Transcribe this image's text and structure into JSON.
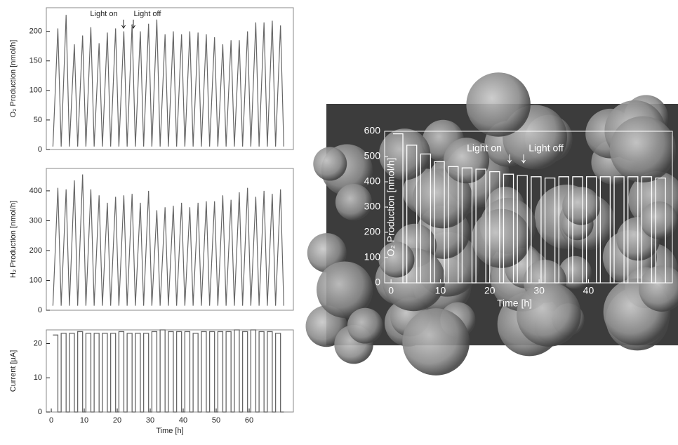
{
  "chart_data": [
    {
      "type": "line",
      "step": false,
      "color": "#666666",
      "axis_color": "#222222",
      "ylabel": "O₂ Production [nmol/h]",
      "annotations": [
        "Light on",
        "Light off"
      ],
      "xlim": [
        -1.5,
        73.4
      ],
      "ylim": [
        0,
        240
      ],
      "yticks": [
        0,
        50,
        100,
        150,
        200
      ],
      "x": [
        0.5,
        2,
        3,
        4.5,
        5.5,
        7,
        8,
        9.5,
        10.5,
        12,
        13,
        14.5,
        15.5,
        17,
        18,
        19.5,
        20.5,
        22,
        23,
        24.5,
        25.5,
        27,
        28,
        29.5,
        30.5,
        32,
        33,
        34.5,
        35.5,
        37,
        38,
        39.5,
        40.5,
        42,
        43,
        44.5,
        45.5,
        47,
        48,
        49.5,
        50.5,
        52,
        53,
        54.5,
        55.5,
        57,
        58,
        59.5,
        60.5,
        62,
        63,
        64.5,
        65.5,
        67,
        68,
        69.5,
        70.5
      ],
      "values": [
        5,
        205,
        5,
        228,
        5,
        178,
        5,
        193,
        5,
        207,
        5,
        180,
        5,
        198,
        5,
        205,
        5,
        200,
        5,
        212,
        5,
        200,
        5,
        213,
        5,
        220,
        5,
        195,
        5,
        200,
        5,
        195,
        5,
        200,
        5,
        198,
        5,
        195,
        5,
        190,
        5,
        178,
        5,
        185,
        5,
        185,
        5,
        200,
        5,
        215,
        5,
        215,
        5,
        218,
        5,
        210,
        5
      ]
    },
    {
      "type": "line",
      "step": false,
      "color": "#666666",
      "axis_color": "#222222",
      "ylabel": "H₂ Production [nmol/h]",
      "xlim": [
        -1.5,
        73.4
      ],
      "ylim": [
        0,
        475
      ],
      "yticks": [
        0,
        100,
        200,
        300,
        400
      ],
      "x": [
        0.5,
        2,
        3,
        4.5,
        5.5,
        7,
        8,
        9.5,
        10.5,
        12,
        13,
        14.5,
        15.5,
        17,
        18,
        19.5,
        20.5,
        22,
        23,
        24.5,
        25.5,
        27,
        28,
        29.5,
        30.5,
        32,
        33,
        34.5,
        35.5,
        37,
        38,
        39.5,
        40.5,
        42,
        43,
        44.5,
        45.5,
        47,
        48,
        49.5,
        50.5,
        52,
        53,
        54.5,
        55.5,
        57,
        58,
        59.5,
        60.5,
        62,
        63,
        64.5,
        65.5,
        67,
        68,
        69.5,
        70.5
      ],
      "values": [
        15,
        410,
        15,
        405,
        15,
        435,
        15,
        455,
        15,
        405,
        15,
        385,
        15,
        360,
        15,
        380,
        15,
        385,
        15,
        390,
        15,
        360,
        15,
        400,
        15,
        335,
        15,
        345,
        15,
        350,
        15,
        360,
        15,
        345,
        15,
        360,
        15,
        365,
        15,
        365,
        15,
        385,
        15,
        370,
        15,
        395,
        15,
        410,
        15,
        380,
        15,
        400,
        15,
        390,
        15,
        405,
        15
      ]
    },
    {
      "type": "line",
      "step": true,
      "color": "#666666",
      "axis_color": "#222222",
      "ylabel": "Current [µA]",
      "xlabel": "Time [h]",
      "xlim": [
        -1.5,
        73.4
      ],
      "xticks": [
        0,
        10,
        20,
        30,
        40,
        50,
        60
      ],
      "ylim": [
        0,
        24
      ],
      "yticks": [
        0,
        10,
        20
      ],
      "x": [
        0.5,
        2,
        3,
        4.5,
        5.5,
        7,
        8,
        9.5,
        10.5,
        12,
        13,
        14.5,
        15.5,
        17,
        18,
        19.5,
        20.5,
        22,
        23,
        24.5,
        25.5,
        27,
        28,
        29.5,
        30.5,
        32,
        33,
        34.5,
        35.5,
        37,
        38,
        39.5,
        40.5,
        42,
        43,
        44.5,
        45.5,
        47,
        48,
        49.5,
        50.5,
        52,
        53,
        54.5,
        55.5,
        57,
        58,
        59.5,
        60.5,
        62,
        63,
        64.5,
        65.5,
        67,
        68,
        69.5,
        70.5
      ],
      "values": [
        22.5,
        0,
        23,
        0,
        23,
        0,
        23.5,
        0,
        23,
        0,
        23,
        0,
        23,
        0,
        23,
        0,
        23.5,
        0,
        23,
        0,
        23,
        0,
        23,
        0,
        23.5,
        0,
        24,
        0,
        23.5,
        0,
        23.5,
        0,
        23.5,
        0,
        23,
        0,
        23.5,
        0,
        23.5,
        0,
        23.5,
        0,
        23.5,
        0,
        24,
        0,
        23.5,
        0,
        24,
        0,
        23.5,
        0,
        23.5,
        0,
        23,
        0,
        0
      ]
    },
    {
      "type": "line",
      "step": true,
      "color": "#ffffff",
      "axis_color": "#ffffff",
      "ylabel": "O₂ Production [nmol/h]",
      "xlabel": "Time [h]",
      "annotations": [
        "Light on",
        "Light off"
      ],
      "xlim": [
        -1.3,
        57
      ],
      "xticks": [
        0,
        10,
        20,
        30,
        40
      ],
      "ylim": [
        0,
        600
      ],
      "yticks": [
        0,
        100,
        200,
        300,
        400,
        500,
        600
      ],
      "x": [
        0.4,
        2.4,
        3.2,
        5.2,
        6,
        8,
        8.8,
        10.8,
        11.6,
        13.6,
        14.4,
        16.4,
        17.2,
        19.2,
        20,
        22,
        22.8,
        24.8,
        25.6,
        27.6,
        28.4,
        30.4,
        31.2,
        33.2,
        34,
        36,
        36.8,
        38.8,
        39.6,
        41.6,
        42.4,
        44.4,
        45.2,
        47.2,
        48,
        50,
        50.8,
        52.8,
        53.6,
        55.6
      ],
      "values": [
        590,
        0,
        545,
        0,
        510,
        0,
        480,
        0,
        460,
        0,
        455,
        0,
        450,
        0,
        440,
        0,
        430,
        0,
        425,
        0,
        420,
        0,
        415,
        0,
        420,
        0,
        420,
        0,
        420,
        0,
        420,
        0,
        420,
        0,
        420,
        0,
        420,
        0,
        415,
        0
      ]
    }
  ]
}
